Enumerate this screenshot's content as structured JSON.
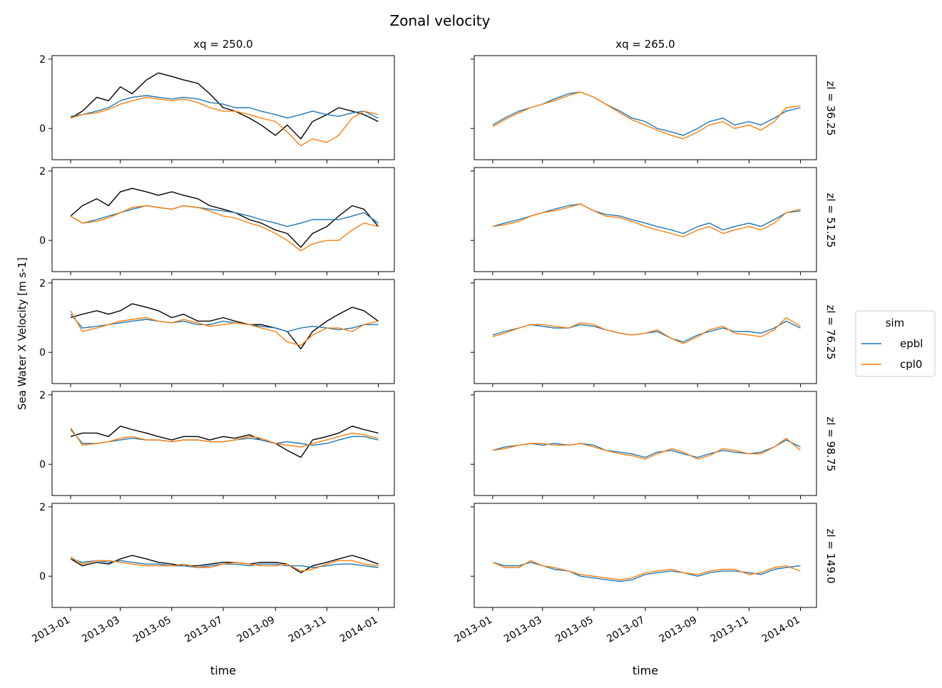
{
  "figure": {
    "title": "Zonal velocity",
    "ylabel": "Sea Water X Velocity [m s-1]",
    "xlabel": "time",
    "col_labels": [
      "xq = 250.0",
      "xq = 265.0"
    ],
    "row_labels": [
      "zl = 36.25",
      "zl = 51.25",
      "zl = 76.25",
      "zl = 98.75",
      "zl = 149.0"
    ],
    "legend": {
      "title": "sim",
      "placement": "right",
      "entries": [
        {
          "label": "epbl",
          "color": "#1f77b4"
        },
        {
          "label": "cpl0",
          "color": "#ff7f0e"
        }
      ]
    },
    "colors": {
      "epbl": "#1f77b4",
      "cpl0": "#ff7f0e",
      "obs": "#000000"
    }
  },
  "chart_data": {
    "type": "line",
    "grid": false,
    "x_tick_labels": [
      "2013-01",
      "2013-03",
      "2013-05",
      "2013-07",
      "2013-09",
      "2013-11",
      "2014-01"
    ],
    "x_tick_values": [
      "2013-01-01",
      "2013-03-01",
      "2013-05-01",
      "2013-07-01",
      "2013-09-01",
      "2013-11-01",
      "2014-01-01"
    ],
    "xlim": [
      "2012-12-10",
      "2014-01-20"
    ],
    "y_tick_labels": [
      "0",
      "2"
    ],
    "y_tick_values": [
      0,
      2
    ],
    "ylim": [
      -0.9,
      2.1
    ],
    "x": [
      "2013-01-01",
      "2013-01-15",
      "2013-02-01",
      "2013-02-15",
      "2013-03-01",
      "2013-03-15",
      "2013-04-01",
      "2013-04-15",
      "2013-05-01",
      "2013-05-15",
      "2013-06-01",
      "2013-06-15",
      "2013-07-01",
      "2013-07-15",
      "2013-08-01",
      "2013-08-15",
      "2013-09-01",
      "2013-09-15",
      "2013-10-01",
      "2013-10-15",
      "2013-11-01",
      "2013-11-15",
      "2013-12-01",
      "2013-12-15",
      "2014-01-01"
    ],
    "panels": [
      {
        "row": 0,
        "col": 0,
        "series": {
          "epbl": [
            0.35,
            0.4,
            0.5,
            0.6,
            0.8,
            0.9,
            0.95,
            0.9,
            0.85,
            0.9,
            0.85,
            0.75,
            0.7,
            0.6,
            0.6,
            0.5,
            0.4,
            0.3,
            0.4,
            0.5,
            0.4,
            0.35,
            0.45,
            0.5,
            0.3
          ],
          "cpl0": [
            0.3,
            0.4,
            0.45,
            0.55,
            0.7,
            0.8,
            0.9,
            0.85,
            0.8,
            0.85,
            0.75,
            0.6,
            0.5,
            0.5,
            0.4,
            0.3,
            0.2,
            -0.1,
            -0.5,
            -0.3,
            -0.4,
            -0.2,
            0.3,
            0.5,
            0.4
          ],
          "obs": [
            0.3,
            0.5,
            0.9,
            0.8,
            1.2,
            1.0,
            1.4,
            1.6,
            1.5,
            1.4,
            1.3,
            1.0,
            0.6,
            0.5,
            0.3,
            0.1,
            -0.2,
            0.1,
            -0.3,
            0.2,
            0.4,
            0.6,
            0.5,
            0.4,
            0.2
          ]
        }
      },
      {
        "row": 0,
        "col": 1,
        "series": {
          "epbl": [
            0.1,
            0.3,
            0.5,
            0.6,
            0.7,
            0.85,
            1.0,
            1.05,
            0.9,
            0.7,
            0.5,
            0.3,
            0.2,
            0.0,
            -0.1,
            -0.2,
            0.0,
            0.2,
            0.3,
            0.1,
            0.2,
            0.1,
            0.3,
            0.5,
            0.6
          ],
          "cpl0": [
            0.05,
            0.25,
            0.45,
            0.6,
            0.7,
            0.8,
            0.95,
            1.05,
            0.9,
            0.7,
            0.45,
            0.25,
            0.1,
            -0.05,
            -0.2,
            -0.3,
            -0.1,
            0.1,
            0.2,
            0.0,
            0.1,
            -0.05,
            0.2,
            0.6,
            0.65
          ]
        }
      },
      {
        "row": 1,
        "col": 0,
        "series": {
          "epbl": [
            0.7,
            0.5,
            0.6,
            0.7,
            0.8,
            0.9,
            1.0,
            0.95,
            0.9,
            1.0,
            0.95,
            0.9,
            0.85,
            0.8,
            0.7,
            0.6,
            0.5,
            0.4,
            0.5,
            0.6,
            0.6,
            0.6,
            0.7,
            0.8,
            0.5
          ],
          "cpl0": [
            0.7,
            0.5,
            0.55,
            0.65,
            0.8,
            0.95,
            1.0,
            0.95,
            0.9,
            1.0,
            0.95,
            0.85,
            0.7,
            0.65,
            0.5,
            0.4,
            0.2,
            0.0,
            -0.3,
            -0.1,
            0.0,
            0.0,
            0.3,
            0.5,
            0.4
          ],
          "obs": [
            0.7,
            1.0,
            1.2,
            1.0,
            1.4,
            1.5,
            1.4,
            1.3,
            1.4,
            1.3,
            1.2,
            1.0,
            0.9,
            0.8,
            0.6,
            0.5,
            0.3,
            0.2,
            -0.2,
            0.2,
            0.4,
            0.7,
            1.0,
            0.9,
            0.4
          ]
        }
      },
      {
        "row": 1,
        "col": 1,
        "series": {
          "epbl": [
            0.4,
            0.5,
            0.6,
            0.7,
            0.8,
            0.9,
            1.0,
            1.05,
            0.85,
            0.75,
            0.7,
            0.6,
            0.5,
            0.4,
            0.3,
            0.2,
            0.4,
            0.5,
            0.3,
            0.4,
            0.5,
            0.4,
            0.6,
            0.8,
            0.85
          ],
          "cpl0": [
            0.4,
            0.45,
            0.55,
            0.7,
            0.8,
            0.85,
            0.95,
            1.05,
            0.85,
            0.7,
            0.65,
            0.55,
            0.4,
            0.3,
            0.2,
            0.1,
            0.3,
            0.4,
            0.2,
            0.3,
            0.4,
            0.3,
            0.5,
            0.8,
            0.9
          ]
        }
      },
      {
        "row": 2,
        "col": 0,
        "series": {
          "epbl": [
            1.1,
            0.7,
            0.75,
            0.8,
            0.85,
            0.9,
            0.95,
            0.9,
            0.85,
            0.9,
            0.8,
            0.8,
            0.9,
            0.85,
            0.8,
            0.75,
            0.7,
            0.6,
            0.7,
            0.75,
            0.7,
            0.65,
            0.7,
            0.8,
            0.8
          ],
          "cpl0": [
            1.2,
            0.6,
            0.7,
            0.8,
            0.9,
            0.95,
            1.0,
            0.9,
            0.85,
            0.95,
            0.85,
            0.75,
            0.8,
            0.85,
            0.8,
            0.7,
            0.6,
            0.3,
            0.2,
            0.5,
            0.7,
            0.7,
            0.6,
            0.8,
            0.9
          ],
          "obs": [
            1.0,
            1.1,
            1.2,
            1.1,
            1.2,
            1.4,
            1.3,
            1.2,
            1.0,
            1.1,
            0.9,
            0.9,
            1.0,
            0.9,
            0.8,
            0.8,
            0.7,
            0.6,
            0.1,
            0.6,
            0.9,
            1.1,
            1.3,
            1.2,
            0.9
          ]
        }
      },
      {
        "row": 2,
        "col": 1,
        "series": {
          "epbl": [
            0.5,
            0.6,
            0.7,
            0.8,
            0.75,
            0.7,
            0.7,
            0.8,
            0.75,
            0.65,
            0.55,
            0.5,
            0.55,
            0.6,
            0.4,
            0.3,
            0.5,
            0.6,
            0.7,
            0.6,
            0.6,
            0.55,
            0.7,
            0.9,
            0.7
          ],
          "cpl0": [
            0.45,
            0.55,
            0.7,
            0.8,
            0.8,
            0.75,
            0.7,
            0.85,
            0.8,
            0.65,
            0.55,
            0.5,
            0.55,
            0.65,
            0.4,
            0.25,
            0.45,
            0.65,
            0.75,
            0.55,
            0.5,
            0.45,
            0.65,
            1.0,
            0.75
          ]
        }
      },
      {
        "row": 3,
        "col": 0,
        "series": {
          "epbl": [
            1.0,
            0.6,
            0.6,
            0.65,
            0.7,
            0.75,
            0.7,
            0.7,
            0.65,
            0.7,
            0.7,
            0.65,
            0.65,
            0.7,
            0.75,
            0.7,
            0.6,
            0.65,
            0.6,
            0.55,
            0.6,
            0.7,
            0.8,
            0.8,
            0.7
          ],
          "cpl0": [
            1.05,
            0.55,
            0.6,
            0.65,
            0.75,
            0.8,
            0.7,
            0.7,
            0.65,
            0.7,
            0.7,
            0.65,
            0.65,
            0.7,
            0.8,
            0.75,
            0.6,
            0.55,
            0.5,
            0.6,
            0.7,
            0.8,
            0.9,
            0.85,
            0.75
          ],
          "obs": [
            0.8,
            0.9,
            0.9,
            0.8,
            1.1,
            1.0,
            0.9,
            0.8,
            0.7,
            0.8,
            0.8,
            0.7,
            0.8,
            0.75,
            0.85,
            0.7,
            0.6,
            0.4,
            0.2,
            0.7,
            0.8,
            0.9,
            1.1,
            1.0,
            0.9
          ]
        }
      },
      {
        "row": 3,
        "col": 1,
        "series": {
          "epbl": [
            0.4,
            0.5,
            0.55,
            0.6,
            0.55,
            0.6,
            0.55,
            0.6,
            0.55,
            0.4,
            0.35,
            0.3,
            0.2,
            0.35,
            0.4,
            0.3,
            0.2,
            0.3,
            0.4,
            0.35,
            0.3,
            0.35,
            0.5,
            0.7,
            0.5
          ],
          "cpl0": [
            0.4,
            0.45,
            0.55,
            0.6,
            0.6,
            0.55,
            0.55,
            0.6,
            0.5,
            0.4,
            0.3,
            0.25,
            0.15,
            0.3,
            0.45,
            0.35,
            0.15,
            0.25,
            0.45,
            0.4,
            0.3,
            0.3,
            0.5,
            0.75,
            0.4
          ]
        }
      },
      {
        "row": 4,
        "col": 0,
        "series": {
          "epbl": [
            0.5,
            0.4,
            0.45,
            0.4,
            0.45,
            0.4,
            0.35,
            0.35,
            0.3,
            0.3,
            0.25,
            0.3,
            0.35,
            0.35,
            0.3,
            0.35,
            0.35,
            0.3,
            0.3,
            0.25,
            0.3,
            0.35,
            0.35,
            0.3,
            0.25
          ],
          "cpl0": [
            0.55,
            0.35,
            0.45,
            0.45,
            0.4,
            0.35,
            0.3,
            0.3,
            0.3,
            0.35,
            0.25,
            0.25,
            0.35,
            0.4,
            0.35,
            0.3,
            0.3,
            0.35,
            0.15,
            0.2,
            0.35,
            0.45,
            0.45,
            0.35,
            0.3
          ],
          "obs": [
            0.5,
            0.3,
            0.4,
            0.35,
            0.5,
            0.6,
            0.5,
            0.4,
            0.35,
            0.3,
            0.3,
            0.35,
            0.4,
            0.4,
            0.35,
            0.4,
            0.4,
            0.35,
            0.1,
            0.3,
            0.4,
            0.5,
            0.6,
            0.5,
            0.35
          ]
        }
      },
      {
        "row": 4,
        "col": 1,
        "series": {
          "epbl": [
            0.4,
            0.3,
            0.3,
            0.4,
            0.3,
            0.2,
            0.15,
            0.0,
            -0.05,
            -0.1,
            -0.15,
            -0.1,
            0.05,
            0.1,
            0.15,
            0.1,
            0.0,
            0.1,
            0.15,
            0.15,
            0.1,
            0.05,
            0.2,
            0.25,
            0.3
          ],
          "cpl0": [
            0.4,
            0.25,
            0.25,
            0.45,
            0.3,
            0.25,
            0.15,
            0.05,
            0.0,
            -0.05,
            -0.1,
            -0.05,
            0.1,
            0.15,
            0.2,
            0.1,
            0.05,
            0.15,
            0.2,
            0.2,
            0.05,
            0.1,
            0.25,
            0.3,
            0.15
          ]
        }
      }
    ]
  }
}
